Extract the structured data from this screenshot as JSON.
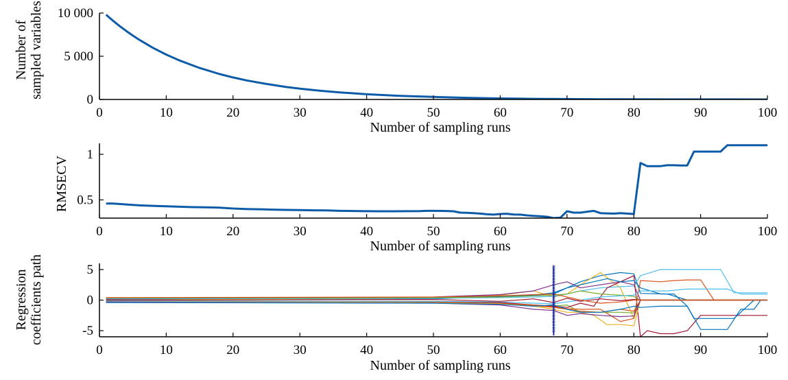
{
  "charts": [
    {
      "type": "line",
      "xlabel": "Number of sampling runs",
      "ylabel": [
        "Number of",
        "sampled variables"
      ],
      "xlim": [
        0,
        100
      ],
      "ylim": [
        0,
        10000
      ],
      "xticks": [
        0,
        10,
        20,
        30,
        40,
        50,
        60,
        70,
        80,
        90,
        100
      ],
      "xtick_labels": [
        "0",
        "10",
        "20",
        "30",
        "40",
        "50",
        "60",
        "70",
        "80",
        "90",
        "100"
      ],
      "yticks": [
        0,
        5000,
        10000
      ],
      "ytick_labels": [
        "0",
        "5 000",
        "10 000"
      ],
      "color": "#0b5ba8",
      "series": [
        {
          "x": [
            1,
            2,
            3,
            4,
            5,
            6,
            8,
            10,
            12,
            15,
            18,
            20,
            22,
            25,
            28,
            30,
            33,
            36,
            40,
            45,
            50,
            55,
            60,
            65,
            70,
            75,
            80,
            85,
            90,
            95,
            100
          ],
          "values": [
            9800,
            9130,
            8510,
            7930,
            7390,
            6890,
            5980,
            5190,
            4510,
            3640,
            2940,
            2550,
            2210,
            1790,
            1440,
            1250,
            1010,
            820,
            600,
            420,
            290,
            190,
            120,
            75,
            45,
            25,
            15,
            10,
            6,
            4,
            2
          ]
        }
      ]
    },
    {
      "type": "line",
      "xlabel": "Number of sampling runs",
      "ylabel": [
        "RMSECV"
      ],
      "xlim": [
        0,
        100
      ],
      "ylim": [
        0.3,
        1.12
      ],
      "xticks": [
        0,
        10,
        20,
        30,
        40,
        50,
        60,
        70,
        80,
        90,
        100
      ],
      "xtick_labels": [
        "0",
        "10",
        "20",
        "30",
        "40",
        "50",
        "60",
        "70",
        "80",
        "90",
        "100"
      ],
      "yticks": [
        0.5,
        1
      ],
      "ytick_labels": [
        "0.5",
        "1"
      ],
      "color": "#0b5ba8",
      "series": [
        {
          "x": [
            1,
            2,
            3,
            4,
            5,
            6,
            8,
            10,
            12,
            14,
            16,
            18,
            20,
            22,
            24,
            26,
            28,
            30,
            32,
            34,
            36,
            38,
            40,
            42,
            44,
            46,
            48,
            49,
            50,
            52,
            53,
            54,
            55,
            56,
            57,
            58,
            59,
            60,
            61,
            62,
            63,
            64,
            65,
            66,
            67,
            68,
            69,
            70,
            71,
            72,
            73,
            74,
            75,
            76,
            77,
            78,
            79,
            80,
            81,
            82,
            83,
            84,
            85,
            86,
            87,
            88,
            89,
            90,
            91,
            92,
            93,
            94,
            95,
            96,
            97,
            98,
            99,
            100
          ],
          "values": [
            0.46,
            0.46,
            0.455,
            0.45,
            0.445,
            0.44,
            0.435,
            0.43,
            0.425,
            0.42,
            0.418,
            0.415,
            0.405,
            0.4,
            0.397,
            0.393,
            0.39,
            0.388,
            0.386,
            0.384,
            0.38,
            0.378,
            0.376,
            0.375,
            0.375,
            0.376,
            0.377,
            0.38,
            0.38,
            0.378,
            0.375,
            0.36,
            0.358,
            0.355,
            0.35,
            0.342,
            0.338,
            0.345,
            0.348,
            0.34,
            0.338,
            0.33,
            0.325,
            0.32,
            0.315,
            0.3,
            0.305,
            0.375,
            0.36,
            0.36,
            0.37,
            0.38,
            0.355,
            0.352,
            0.35,
            0.355,
            0.35,
            0.345,
            0.905,
            0.87,
            0.87,
            0.87,
            0.88,
            0.88,
            0.878,
            0.878,
            1.03,
            1.03,
            1.03,
            1.03,
            1.03,
            1.1,
            1.1,
            1.1,
            1.1,
            1.1,
            1.1,
            1.1
          ]
        }
      ]
    },
    {
      "type": "line",
      "xlabel": "Number of sampling runs",
      "ylabel": [
        "Regression",
        "coefficients path"
      ],
      "xlim": [
        0,
        100
      ],
      "ylim": [
        -6,
        6
      ],
      "xticks": [
        0,
        10,
        20,
        30,
        40,
        50,
        60,
        70,
        80,
        90,
        100
      ],
      "xtick_labels": [
        "0",
        "10",
        "20",
        "30",
        "40",
        "50",
        "60",
        "70",
        "80",
        "90",
        "100"
      ],
      "yticks": [
        -5,
        0,
        5
      ],
      "ytick_labels": [
        "-5",
        "0",
        "5"
      ],
      "marker_line": {
        "x": 68,
        "color": "#1a2c9c"
      },
      "series": [
        {
          "color": "#0072bd",
          "x": [
            1,
            50,
            60,
            65,
            68,
            70,
            72,
            75,
            78,
            80,
            81,
            85,
            88,
            89,
            94,
            100
          ],
          "values": [
            0.1,
            0.2,
            0.6,
            0.8,
            1.0,
            2.0,
            3.0,
            4.0,
            4.5,
            4.3,
            1.1,
            1.0,
            0.0,
            0.0,
            0.0,
            0.0
          ]
        },
        {
          "color": "#d95319",
          "x": [
            1,
            50,
            60,
            65,
            68,
            70,
            72,
            75,
            78,
            80,
            81,
            84,
            86,
            88,
            100
          ],
          "values": [
            -0.1,
            -0.2,
            -0.5,
            -0.9,
            -1.2,
            -1.5,
            -1.8,
            -2.0,
            -1.5,
            -1.8,
            0.0,
            0.0,
            0.0,
            0.0,
            0.0
          ]
        },
        {
          "color": "#edb120",
          "x": [
            1,
            50,
            60,
            65,
            68,
            70,
            72,
            75,
            78,
            80,
            81,
            84,
            86,
            88,
            100
          ],
          "values": [
            0.05,
            0.3,
            0.8,
            1.5,
            0.5,
            1.0,
            2.5,
            4.5,
            2.0,
            -3.0,
            0.0,
            0.0,
            0.0,
            0.0,
            0.0
          ]
        },
        {
          "color": "#7e2f8e",
          "x": [
            1,
            50,
            60,
            65,
            68,
            70,
            72,
            75,
            78,
            80,
            81,
            100
          ],
          "values": [
            0.15,
            0.5,
            0.9,
            1.5,
            2.5,
            3.0,
            2.0,
            2.5,
            3.0,
            2.5,
            0.0,
            0.0
          ]
        },
        {
          "color": "#77ac30",
          "x": [
            1,
            50,
            60,
            65,
            68,
            70,
            72,
            75,
            78,
            80,
            81,
            100
          ],
          "values": [
            -0.05,
            -0.3,
            -0.6,
            -0.8,
            -1.0,
            -0.8,
            -2.0,
            -2.0,
            -2.0,
            -2.1,
            0.0,
            0.0
          ]
        },
        {
          "color": "#4dbeee",
          "x": [
            1,
            50,
            60,
            65,
            68,
            70,
            72,
            75,
            78,
            80,
            81,
            84,
            86,
            90,
            93,
            95,
            100
          ],
          "values": [
            0.2,
            0.3,
            0.4,
            0.5,
            0.6,
            1.0,
            1.5,
            2.0,
            2.2,
            2.3,
            4.0,
            5.0,
            5.0,
            5.0,
            5.0,
            1.2,
            1.2
          ]
        },
        {
          "color": "#a2142f",
          "x": [
            1,
            50,
            60,
            65,
            68,
            70,
            72,
            74,
            76,
            78,
            80,
            81,
            82,
            84,
            86,
            88,
            90,
            100
          ],
          "values": [
            -0.2,
            -0.3,
            -0.4,
            -0.8,
            -1.0,
            -1.2,
            -0.5,
            -1.0,
            2.0,
            3.0,
            4.0,
            -6.0,
            -5.0,
            -5.5,
            -5.5,
            -5.0,
            -2.5,
            -2.5
          ]
        },
        {
          "color": "#0072bd",
          "x": [
            1,
            50,
            60,
            65,
            68,
            70,
            72,
            76,
            78,
            80,
            81,
            84,
            86,
            88,
            90,
            94,
            96,
            98,
            99,
            100
          ],
          "values": [
            0.3,
            0.4,
            0.6,
            0.8,
            1.2,
            2.0,
            2.5,
            3.5,
            3.0,
            3.2,
            2.0,
            1.0,
            1.0,
            -1.0,
            -4.8,
            -4.8,
            -1.5,
            -1.5,
            0.0,
            0.0
          ]
        },
        {
          "color": "#d95319",
          "x": [
            1,
            50,
            60,
            65,
            68,
            70,
            72,
            75,
            78,
            80,
            81,
            84,
            86,
            88,
            90,
            92,
            94,
            96,
            100
          ],
          "values": [
            0.02,
            -0.4,
            -0.6,
            -0.8,
            -1.1,
            -1.4,
            -1.5,
            -1.5,
            -3.5,
            -3.0,
            3.2,
            3.0,
            3.2,
            3.3,
            3.3,
            0.0,
            0.0,
            0.0,
            0.0
          ]
        },
        {
          "color": "#edb120",
          "x": [
            1,
            50,
            60,
            65,
            68,
            70,
            72,
            74,
            76,
            78,
            80,
            81,
            100
          ],
          "values": [
            -0.25,
            -0.4,
            -0.6,
            -1.0,
            -1.5,
            -2.0,
            -2.0,
            -2.5,
            -4.0,
            -4.0,
            -4.2,
            0.0,
            0.0
          ]
        },
        {
          "color": "#7e2f8e",
          "x": [
            1,
            50,
            60,
            65,
            68,
            70,
            72,
            75,
            78,
            80,
            81,
            100
          ],
          "values": [
            -0.3,
            -0.5,
            -0.8,
            -1.5,
            -1.7,
            -2.5,
            -2.2,
            -2.5,
            -2.7,
            -2.6,
            0.0,
            0.0
          ]
        },
        {
          "color": "#77ac30",
          "x": [
            1,
            50,
            60,
            65,
            68,
            70,
            72,
            75,
            78,
            80,
            81,
            100
          ],
          "values": [
            0.35,
            0.4,
            0.5,
            0.7,
            0.8,
            1.0,
            1.5,
            1.0,
            0.8,
            0.6,
            0.0,
            0.0
          ]
        },
        {
          "color": "#4dbeee",
          "x": [
            1,
            50,
            60,
            65,
            68,
            70,
            72,
            75,
            78,
            80,
            81,
            85,
            88,
            90,
            94,
            96,
            100
          ],
          "values": [
            -0.15,
            -0.2,
            -0.3,
            -0.5,
            -0.6,
            -0.3,
            0.0,
            0.5,
            0.7,
            0.8,
            1.5,
            1.5,
            1.8,
            1.8,
            1.8,
            1.0,
            1.0
          ]
        },
        {
          "color": "#a2142f",
          "x": [
            1,
            50,
            60,
            65,
            68,
            70,
            72,
            75,
            78,
            80,
            81,
            100
          ],
          "values": [
            0.0,
            0.1,
            -0.2,
            0.2,
            -0.4,
            0.3,
            -0.2,
            0.2,
            -0.1,
            0.1,
            0.0,
            0.0
          ]
        },
        {
          "color": "#0072bd",
          "x": [
            1,
            50,
            60,
            65,
            68,
            70,
            72,
            75,
            78,
            80,
            81,
            84,
            88,
            89,
            95,
            98,
            100
          ],
          "values": [
            -0.4,
            -0.5,
            -0.7,
            -1.0,
            -0.8,
            -1.5,
            -2.0,
            -2.0,
            -1.5,
            -1.0,
            -1.2,
            -1.0,
            -1.0,
            -3.0,
            -3.0,
            0.0,
            0.0
          ]
        },
        {
          "color": "#d95319",
          "x": [
            1,
            50,
            60,
            65,
            68,
            70,
            72,
            75,
            78,
            80,
            81,
            100
          ],
          "values": [
            0.4,
            0.5,
            0.7,
            0.9,
            1.0,
            0.5,
            0.0,
            -0.5,
            -0.3,
            0.0,
            0.0,
            0.0
          ]
        }
      ]
    }
  ]
}
